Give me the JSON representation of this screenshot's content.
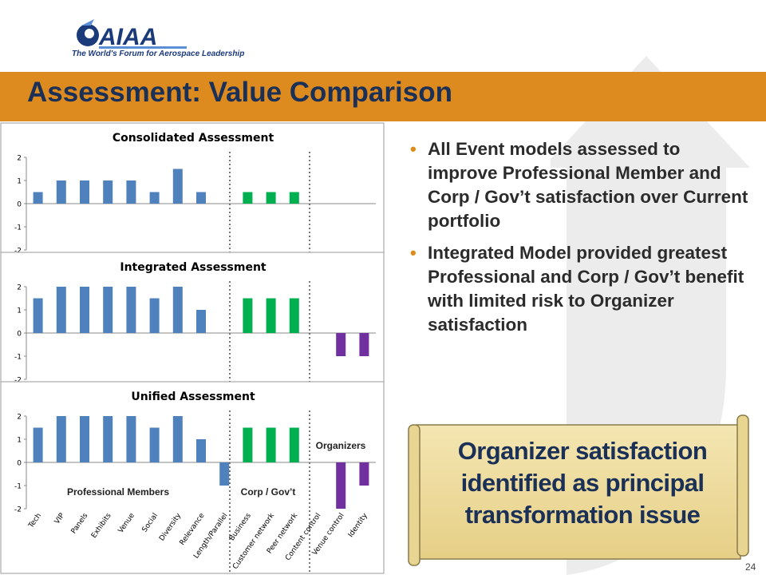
{
  "logo": {
    "text": "AIAA",
    "tagline": "The World's Forum for Aerospace Leadership",
    "icon": "aiaa-logo-icon"
  },
  "slide": {
    "title": "Assessment: Value Comparison",
    "page_number": "24"
  },
  "bullets": [
    "All Event models assessed to improve Professional Member and Corp / Gov’t satisfaction over Current portfolio",
    "Integrated Model provided greatest Professional and Corp / Gov’t benefit with limited risk to Organizer satisfaction"
  ],
  "callout": {
    "text": "Organizer satisfaction identified as principal transformation issue"
  },
  "colors": {
    "title_bar": "#dd8a1f",
    "title_text": "#1b3057",
    "professional": "#4f81bd",
    "corp": "#00b050",
    "organizer": "#7030a0",
    "bullet": "#e08a1a"
  },
  "chart_data": [
    {
      "type": "bar",
      "title": "Consolidated Assessment",
      "categories": [
        "Tech",
        "VIP",
        "Panels",
        "Exhibits",
        "Venue",
        "Social",
        "Diversity",
        "Relevance",
        "Length/Parallel",
        "Business",
        "Customer network",
        "Peer network",
        "Content control",
        "Venue control",
        "Identity"
      ],
      "values": [
        0.5,
        1,
        1,
        1,
        1,
        0.5,
        1.5,
        0.5,
        0,
        0.5,
        0.5,
        0.5,
        0,
        0,
        0
      ],
      "ylim": [
        -2,
        2
      ],
      "yticks": [
        "2",
        "1",
        "0",
        "-1",
        "-2"
      ]
    },
    {
      "type": "bar",
      "title": "Integrated Assessment",
      "categories": [
        "Tech",
        "VIP",
        "Panels",
        "Exhibits",
        "Venue",
        "Social",
        "Diversity",
        "Relevance",
        "Length/Parallel",
        "Business",
        "Customer network",
        "Peer network",
        "Content control",
        "Venue control",
        "Identity"
      ],
      "values": [
        1.5,
        2,
        2,
        2,
        2,
        1.5,
        2,
        1,
        0,
        1.5,
        1.5,
        1.5,
        0,
        -1,
        -1
      ],
      "ylim": [
        -2,
        2
      ],
      "yticks": [
        "2",
        "1",
        "0",
        "-1",
        "-2"
      ]
    },
    {
      "type": "bar",
      "title": "Unified Assessment",
      "categories": [
        "Tech",
        "VIP",
        "Panels",
        "Exhibits",
        "Venue",
        "Social",
        "Diversity",
        "Relevance",
        "Length/Parallel",
        "Business",
        "Customer network",
        "Peer network",
        "Content control",
        "Venue control",
        "Identity"
      ],
      "values": [
        1.5,
        2,
        2,
        2,
        2,
        1.5,
        2,
        1,
        -1,
        1.5,
        1.5,
        1.5,
        0,
        -2,
        -1
      ],
      "ylim": [
        -2,
        2
      ],
      "yticks": [
        "2",
        "1",
        "0",
        "-1",
        "-2"
      ],
      "group_labels": [
        "Professional Members",
        "Corp / Gov’t",
        "Organizers"
      ]
    }
  ]
}
